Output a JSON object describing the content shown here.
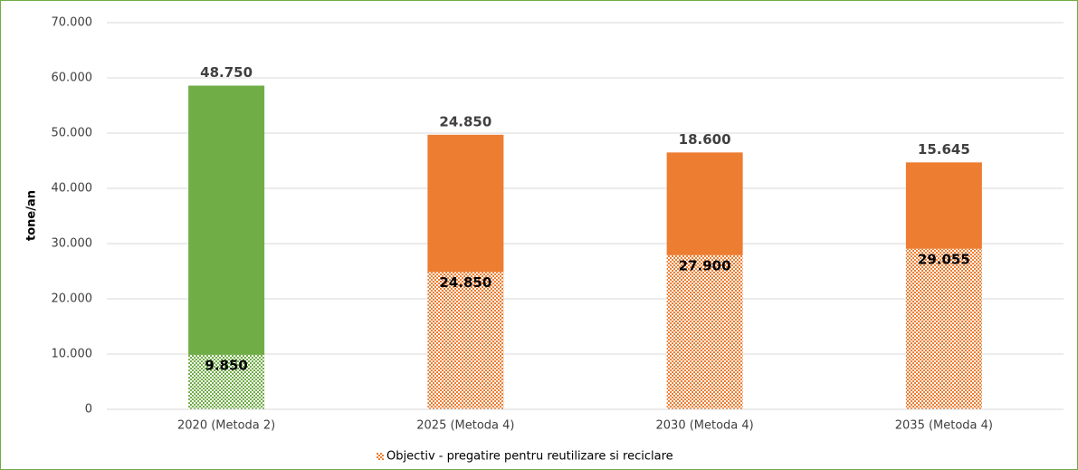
{
  "chart_data": {
    "type": "stacked_bar",
    "categories": [
      "2020 (Metoda 2)",
      "2025 (Metoda 4)",
      "2030 (Metoda 4)",
      "2035 (Metoda 4)"
    ],
    "y_label": "tone/an",
    "series": [
      {
        "name": "Objectiv - pregatire pentru reutilizare si reciclare",
        "pattern": "dots",
        "color": "#ed7d31",
        "colors": [
          "#70ad47",
          "#ed7d31",
          "#ed7d31",
          "#ed7d31"
        ],
        "values": [
          9850,
          24850,
          27900,
          29055
        ],
        "value_labels": [
          "9.850",
          "24.850",
          "27.900",
          "29.055"
        ]
      },
      {
        "colors": [
          "#70ad47",
          "#ed7d31",
          "#ed7d31",
          "#ed7d31"
        ],
        "values": [
          48750,
          24850,
          18600,
          15645
        ],
        "value_labels": [
          "48.750",
          "24.850",
          "18.600",
          "15.645"
        ]
      }
    ],
    "ylim": [
      0,
      70000
    ],
    "yticks": [
      0,
      {
        "value": 10000,
        "label": "10.000"
      },
      {
        "value": 20000,
        "label": "20.000"
      },
      {
        "value": 30000,
        "label": "30.000"
      },
      {
        "value": 40000,
        "label": "40.000"
      },
      {
        "value": 50000,
        "label": "50.000"
      },
      {
        "value": 60000,
        "label": "60.000"
      },
      {
        "value": 70000,
        "label": "70.000"
      }
    ],
    "grid": true,
    "legend": "bottom"
  }
}
